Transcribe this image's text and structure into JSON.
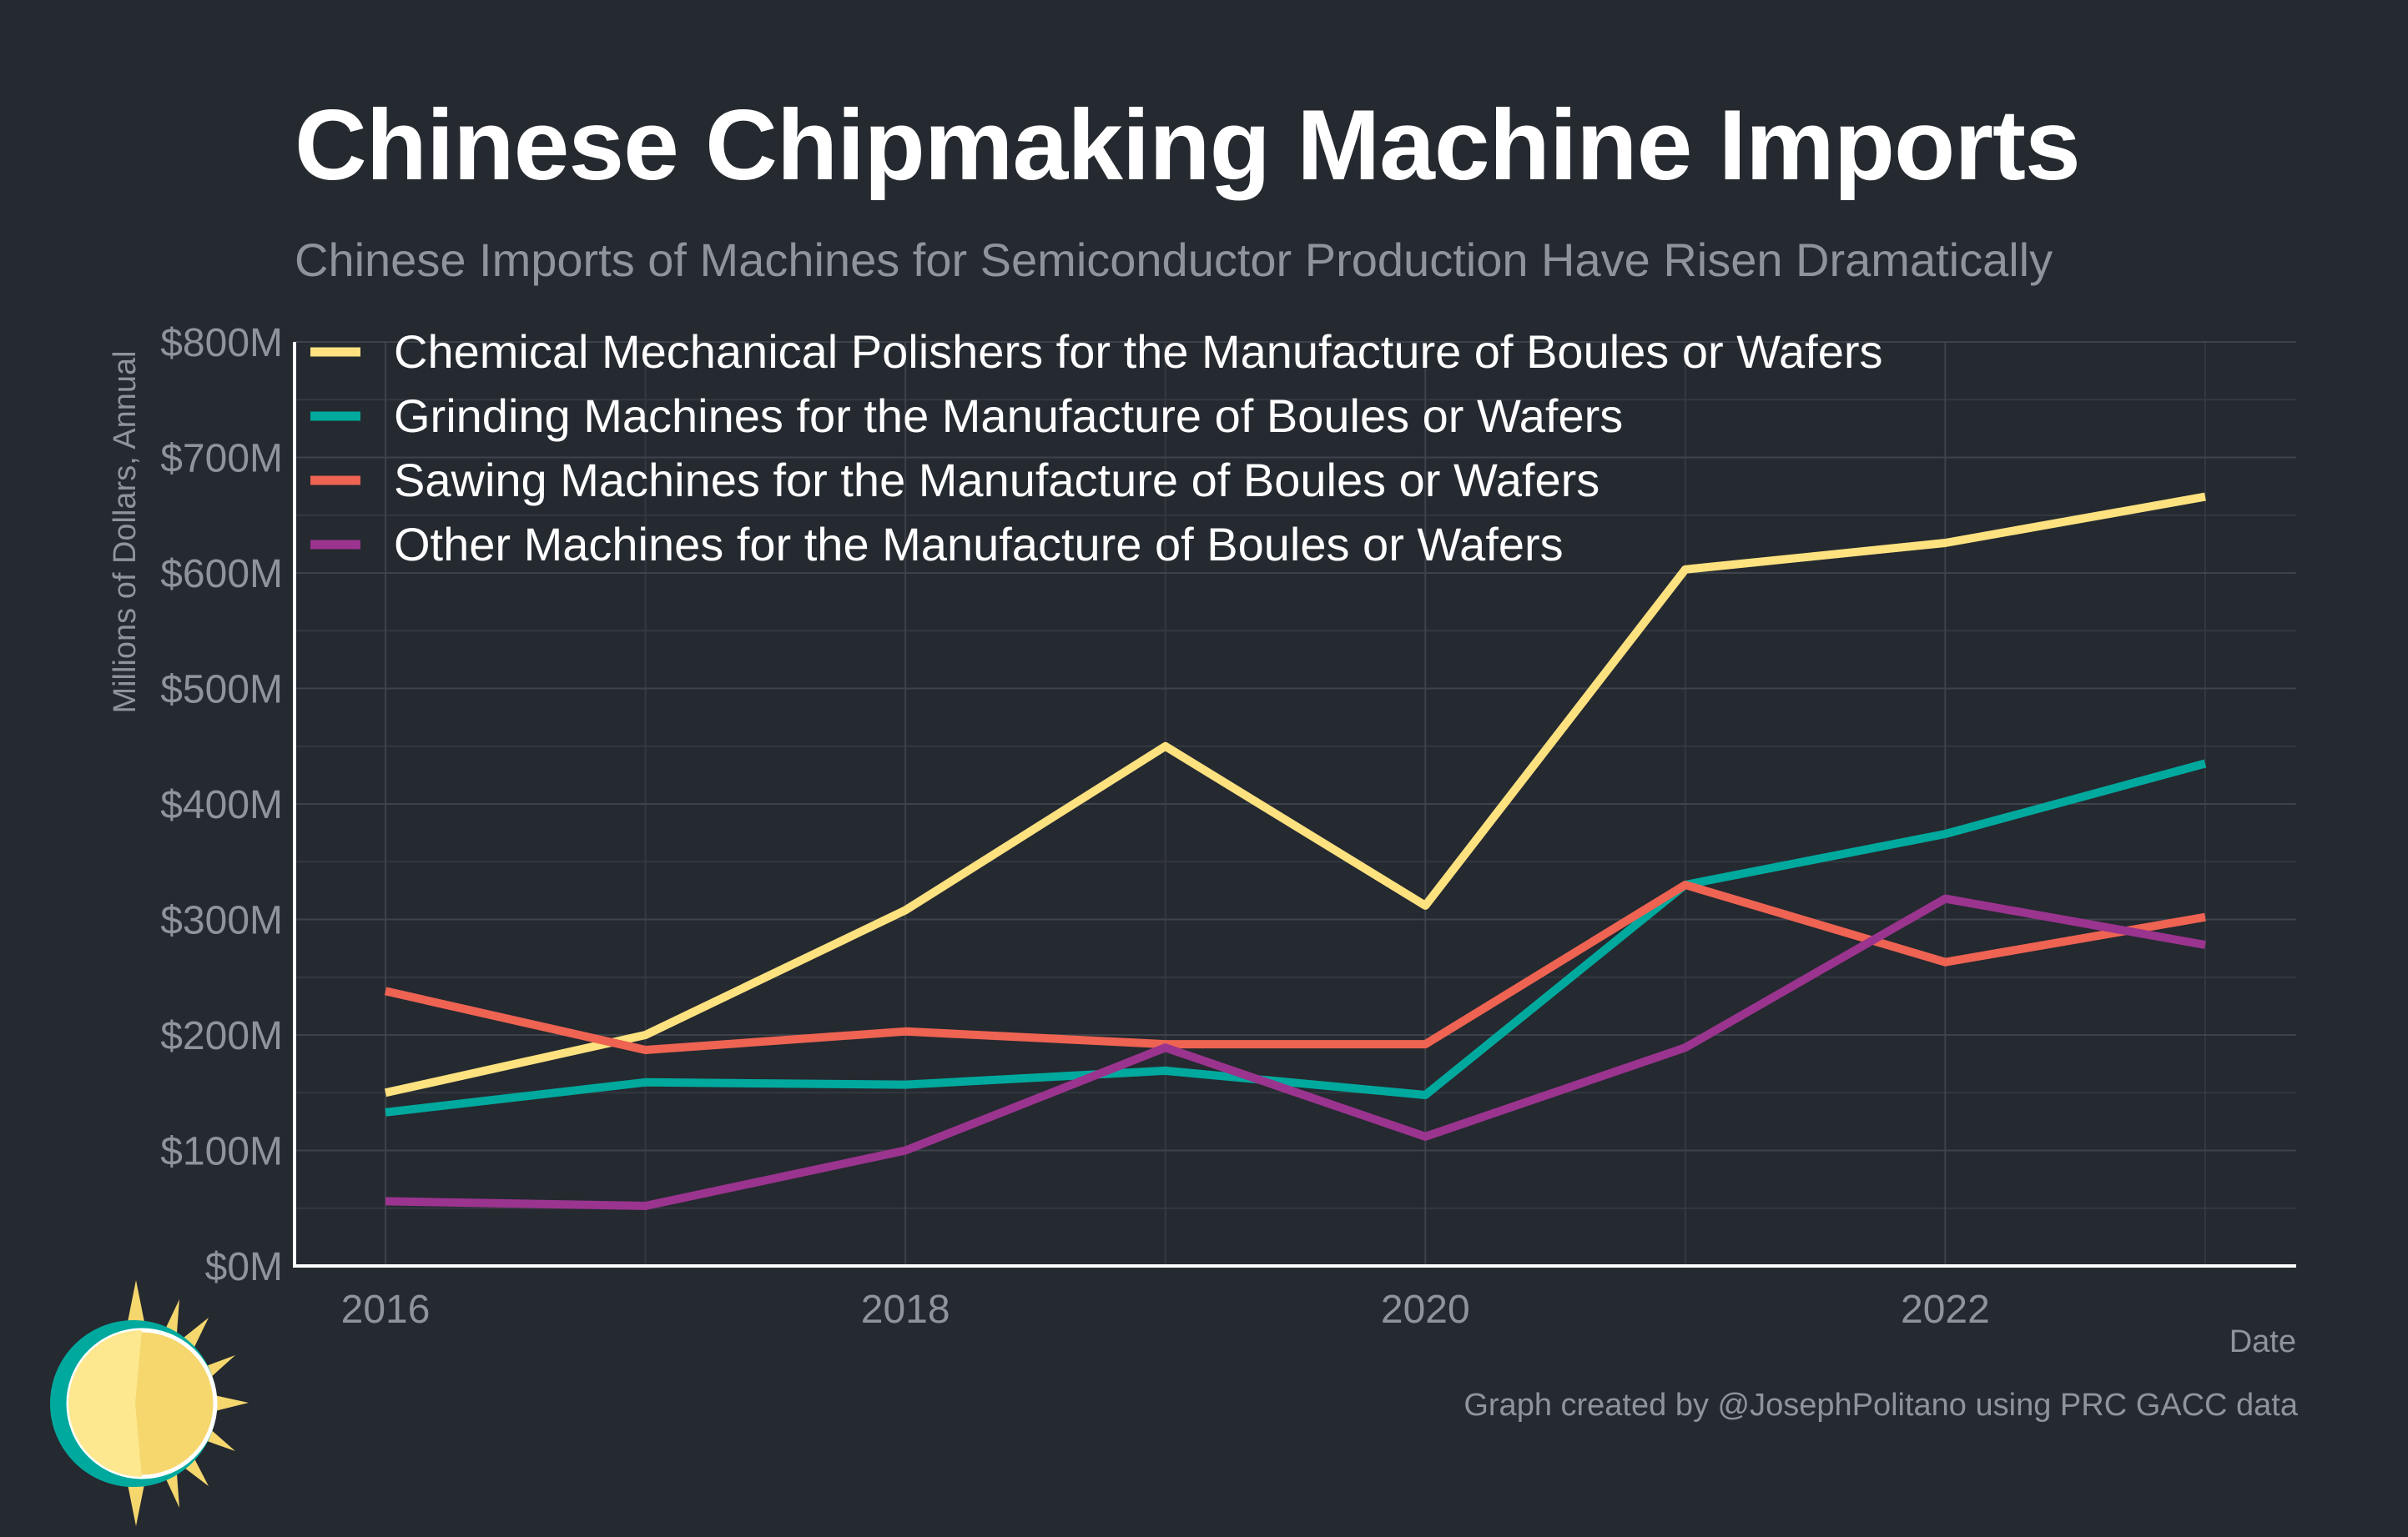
{
  "header": {
    "title": "Chinese Chipmaking Machine Imports",
    "subtitle": "Chinese Imports of Machines for Semiconductor Production Have Risen Dramatically"
  },
  "footer": {
    "caption": "Graph created by @JosephPolitano using PRC GACC data"
  },
  "chart_data": {
    "type": "line",
    "xlabel": "Date",
    "ylabel": "Millions of Dollars, Annual",
    "x": [
      2016,
      2017,
      2018,
      2019,
      2020,
      2021,
      2022,
      2023
    ],
    "xticks": [
      2016,
      2018,
      2020,
      2022
    ],
    "xtick_labels": [
      "2016",
      "2018",
      "2020",
      "2022"
    ],
    "ylim": [
      0,
      800
    ],
    "yticks": [
      0,
      100,
      200,
      300,
      400,
      500,
      600,
      700,
      800
    ],
    "ytick_labels": [
      "$0M",
      "$100M",
      "$200M",
      "$300M",
      "$400M",
      "$500M",
      "$600M",
      "$700M",
      "$800M"
    ],
    "grid": true,
    "legend_position": "top-left",
    "series": [
      {
        "name": "Chemical Mechanical Polishers for the Manufacture of Boules or Wafers",
        "color": "#fde27f",
        "values": [
          150,
          200,
          308,
          450,
          312,
          603,
          626,
          666
        ]
      },
      {
        "name": "Grinding Machines for the Manufacture of Boules or Wafers",
        "color": "#00a99d",
        "values": [
          133,
          159,
          157,
          169,
          148,
          330,
          374,
          435
        ]
      },
      {
        "name": "Sawing Machines for the Manufacture of Boules or Wafers",
        "color": "#ee6352",
        "values": [
          238,
          187,
          203,
          192,
          192,
          330,
          263,
          302
        ]
      },
      {
        "name": "Other Machines for the Manufacture of Boules or Wafers",
        "color": "#9a348e",
        "values": [
          56,
          52,
          100,
          189,
          112,
          189,
          318,
          278
        ]
      }
    ]
  }
}
